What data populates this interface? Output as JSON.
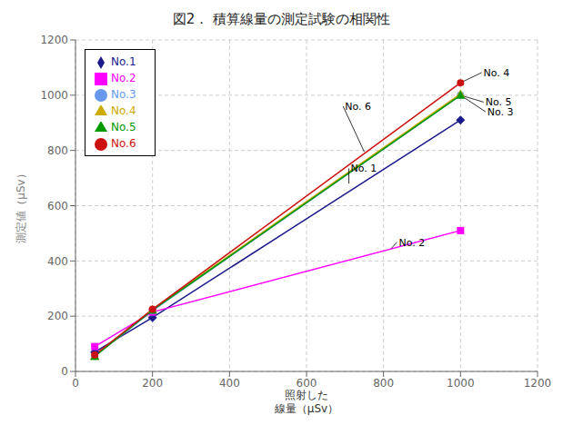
{
  "chart_data": {
    "type": "line",
    "title": "図2．  積算線量の測定試験の相関性",
    "ylabel": "測定値（μSv）",
    "xlabel": "照射した\n線量（μSv）",
    "x": [
      50,
      200,
      1000
    ],
    "xlim": [
      0,
      1200
    ],
    "ylim": [
      0,
      1200
    ],
    "xticks": [
      0,
      200,
      400,
      600,
      800,
      1000,
      1200
    ],
    "yticks": [
      0,
      200,
      400,
      600,
      800,
      1000,
      1200
    ],
    "grid": true,
    "legend": "upper left",
    "series": [
      {
        "name": "No.1",
        "color": "#1a1a8c",
        "marker": "diamond",
        "values": [
          70,
          195,
          910
        ]
      },
      {
        "name": "No.2",
        "color": "#ff00ff",
        "marker": "square",
        "values": [
          90,
          215,
          510
        ]
      },
      {
        "name": "No.3",
        "color": "#6699ee",
        "marker": "circle",
        "values": [
          55,
          220,
          1000
        ]
      },
      {
        "name": "No.4",
        "color": "#ccaa00",
        "marker": "triangle",
        "values": [
          55,
          225,
          1005
        ]
      },
      {
        "name": "No.5",
        "color": "#009900",
        "marker": "triangle",
        "values": [
          55,
          222,
          1000
        ]
      },
      {
        "name": "No.6",
        "color": "#cc1111",
        "marker": "circle",
        "values": [
          60,
          225,
          1045
        ]
      }
    ],
    "annotations": [
      {
        "text": "No. 4",
        "xy": [
          1000,
          1045
        ],
        "xytext": [
          1055,
          1082
        ]
      },
      {
        "text": "No. 6",
        "xy": [
          750,
          795
        ],
        "xytext": [
          695,
          960
        ]
      },
      {
        "text": "No. 5",
        "xy": [
          1000,
          1000
        ],
        "xytext": [
          1060,
          975
        ]
      },
      {
        "text": "No. 3",
        "xy": [
          1000,
          1000
        ],
        "xytext": [
          1065,
          940
        ]
      },
      {
        "text": "No. 1",
        "xy": [
          710,
          680
        ],
        "xytext": [
          710,
          735
        ]
      },
      {
        "text": "No. 2",
        "xy": [
          820,
          445
        ],
        "xytext": [
          835,
          468
        ]
      }
    ]
  }
}
